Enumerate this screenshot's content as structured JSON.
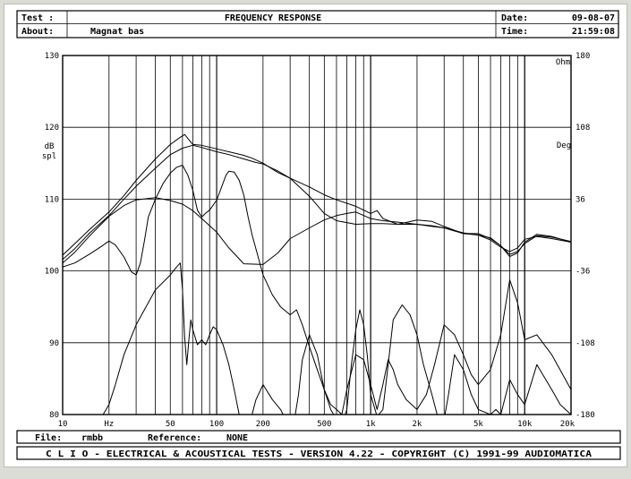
{
  "header": {
    "test_label": "Test :",
    "about_label": "About:",
    "about_value": "Magnat bas",
    "title": "FREQUENCY RESPONSE",
    "date_label": "Date:",
    "date_value": "09-08-07",
    "time_label": "Time:",
    "time_value": "21:59:08"
  },
  "footer": {
    "file_label": "File:",
    "file_value": "rmbb",
    "reference_label": "Reference:",
    "reference_value": "NONE",
    "banner": "C L I O  -  ELECTRICAL & ACOUSTICAL TESTS  -  VERSION 4.22  -  COPYRIGHT (C) 1991-99 AUDIOMATICA"
  },
  "chart_data": {
    "type": "line",
    "title": "FREQUENCY RESPONSE",
    "xscale": "log",
    "xlim": [
      10,
      20000
    ],
    "ylim": [
      80,
      130
    ],
    "ylabel": "dB spl",
    "y2lim": [
      -180,
      180
    ],
    "y2label": "Deg",
    "y2unit": "Ohm",
    "x_ticks": [
      {
        "value": 10,
        "label": "10"
      },
      {
        "value": 20,
        "label": "Hz"
      },
      {
        "value": 50,
        "label": "50"
      },
      {
        "value": 100,
        "label": "100"
      },
      {
        "value": 200,
        "label": "200"
      },
      {
        "value": 500,
        "label": "500"
      },
      {
        "value": 1000,
        "label": "1k"
      },
      {
        "value": 2000,
        "label": "2k"
      },
      {
        "value": 5000,
        "label": "5k"
      },
      {
        "value": 10000,
        "label": "10k"
      },
      {
        "value": 20000,
        "label": "20k"
      }
    ],
    "y_ticks": [
      {
        "value": 80,
        "label": "80"
      },
      {
        "value": 90,
        "label": "90"
      },
      {
        "value": 100,
        "label": "100"
      },
      {
        "value": 110,
        "label": "110"
      },
      {
        "value": 120,
        "label": "120"
      },
      {
        "value": 130,
        "label": "130"
      }
    ],
    "y2_ticks": [
      {
        "value": -180,
        "label": "-180"
      },
      {
        "value": -108,
        "label": "-108"
      },
      {
        "value": -36,
        "label": "-36"
      },
      {
        "value": 36,
        "label": "36"
      },
      {
        "value": 108,
        "label": "108"
      },
      {
        "value": 180,
        "label": "180"
      }
    ],
    "grid": true,
    "series": [
      {
        "x": [
          10,
          12,
          15,
          20,
          25,
          30,
          40,
          50,
          57,
          62,
          70,
          80,
          100,
          120,
          150,
          170,
          200,
          250,
          300,
          400,
          500,
          600,
          800,
          1000,
          1100,
          1200,
          1500,
          2000,
          2500,
          3000,
          4000,
          5000,
          6000,
          7000,
          8000,
          9000,
          10000,
          12000,
          15000,
          20000
        ],
        "values": [
          102.2,
          103.8,
          105.8,
          108.2,
          110.5,
          112.6,
          115.6,
          117.6,
          118.5,
          119.0,
          117.6,
          117.5,
          117.0,
          116.6,
          116.1,
          115.7,
          115.0,
          113.7,
          112.9,
          111.7,
          110.6,
          109.9,
          109.0,
          108.0,
          108.4,
          107.3,
          106.5,
          107.1,
          106.9,
          106.2,
          105.2,
          105.2,
          104.5,
          103.5,
          102.0,
          102.5,
          104.0,
          105.1,
          104.8,
          104.0
        ]
      },
      {
        "x": [
          10,
          12,
          15,
          20,
          25,
          30,
          40,
          50,
          60,
          70,
          80,
          100,
          120,
          150,
          180,
          200,
          250,
          300,
          400,
          500,
          600,
          800,
          1000,
          1200,
          1500,
          2000,
          2500,
          3000,
          4000,
          5000,
          6000,
          7000,
          8000,
          9000,
          10000,
          12000,
          15000,
          20000
        ],
        "values": [
          101.6,
          103.1,
          105.3,
          107.7,
          110.0,
          111.8,
          114.3,
          116.2,
          117.1,
          117.5,
          117.2,
          116.6,
          116.2,
          115.6,
          115.1,
          114.9,
          113.9,
          112.9,
          110.4,
          108.0,
          107.0,
          106.5,
          106.6,
          106.6,
          106.5,
          106.5,
          106.3,
          106.0,
          105.3,
          105.0,
          104.6,
          103.5,
          102.3,
          102.7,
          103.8,
          104.9,
          104.7,
          104.1
        ]
      },
      {
        "x": [
          10,
          12,
          15,
          20,
          25,
          30,
          40,
          50,
          60,
          70,
          80,
          100,
          120,
          150,
          200,
          250,
          300,
          400,
          500,
          600,
          700,
          800,
          1000,
          1200,
          1500,
          2000,
          2500,
          3000,
          4000,
          5000,
          6000,
          7000,
          8000,
          9000,
          10000,
          12000,
          15000,
          20000
        ],
        "values": [
          101.1,
          102.6,
          104.9,
          107.6,
          109.1,
          109.9,
          110.2,
          109.8,
          109.3,
          108.4,
          107.3,
          105.4,
          103.2,
          101.0,
          100.9,
          102.5,
          104.5,
          106.0,
          107.1,
          107.7,
          108.0,
          108.2,
          107.3,
          107.0,
          106.8,
          106.5,
          106.2,
          106.0,
          105.2,
          105.0,
          104.3,
          103.3,
          102.7,
          103.2,
          104.4,
          104.8,
          104.5,
          104.0
        ]
      },
      {
        "x": [
          10,
          12,
          15,
          18,
          20,
          22,
          25,
          28,
          30,
          32,
          34,
          36,
          40,
          45,
          50,
          55,
          60,
          65,
          70,
          75,
          80,
          85,
          90,
          100,
          110,
          115,
          120,
          130,
          140,
          150,
          160,
          170,
          180,
          200,
          230,
          260,
          300,
          330,
          360,
          400,
          450,
          500,
          550,
          600,
          650,
          700,
          800,
          900,
          1000,
          1100,
          1200,
          1300,
          1400,
          1500,
          1700,
          2000,
          2300,
          2600,
          3000,
          3500,
          4000,
          4500,
          5000,
          6000,
          7000,
          8000,
          9000,
          10000,
          12000,
          15000,
          20000
        ],
        "values": [
          -32,
          -28,
          -19,
          -11,
          -6,
          -10,
          -22,
          -37,
          -40,
          -28,
          -5,
          18,
          36,
          52,
          62,
          68,
          70,
          60,
          45,
          25,
          18,
          22,
          25,
          35,
          52,
          60,
          64,
          63,
          55,
          40,
          18,
          0,
          -14,
          -40,
          -60,
          -72,
          -80,
          -75,
          -90,
          -112,
          -135,
          -155,
          -170,
          -175,
          -180,
          -155,
          -120,
          -125,
          -150,
          -175,
          -150,
          -125,
          -135,
          -150,
          -165,
          -175,
          -160,
          -130,
          -90,
          -100,
          -120,
          -140,
          -150,
          -135,
          -100,
          -45,
          -68,
          -105,
          -100,
          -120,
          -155
        ]
      },
      {
        "x": [
          10,
          15,
          18,
          20,
          22,
          25,
          30,
          40,
          50,
          55,
          58,
          60,
          62,
          64,
          66,
          68,
          70,
          75,
          80,
          85,
          90,
          95,
          100,
          110,
          120,
          130,
          140,
          150,
          160,
          180,
          200,
          230,
          260,
          280,
          300,
          320,
          340,
          360,
          400,
          450,
          500,
          550,
          600,
          650,
          700,
          750,
          800,
          850,
          900,
          950,
          1000,
          1100,
          1200,
          1300,
          1400,
          1600,
          1800,
          2000,
          2200,
          2500,
          2700,
          3000,
          3200,
          3500,
          4000,
          4500,
          5000,
          6000,
          6500,
          7000,
          8000,
          9000,
          10000,
          12000,
          15000,
          17000,
          20000
        ],
        "values": [
          -200,
          -195,
          -182,
          -170,
          -150,
          -120,
          -90,
          -55,
          -40,
          -32,
          -28,
          -55,
          -102,
          -130,
          -105,
          -85,
          -95,
          -110,
          -105,
          -110,
          -100,
          -92,
          -95,
          -110,
          -130,
          -155,
          -180,
          -200,
          -195,
          -165,
          -150,
          -165,
          -175,
          -185,
          -190,
          -185,
          -160,
          -125,
          -100,
          -120,
          -155,
          -175,
          -185,
          -190,
          -175,
          -130,
          -95,
          -75,
          -90,
          -120,
          -160,
          -182,
          -175,
          -130,
          -85,
          -70,
          -80,
          -100,
          -130,
          -160,
          -180,
          -185,
          -160,
          -120,
          -135,
          -160,
          -175,
          -180,
          -175,
          -180,
          -145,
          -160,
          -170,
          -130,
          -155,
          -170,
          -180
        ]
      }
    ]
  }
}
